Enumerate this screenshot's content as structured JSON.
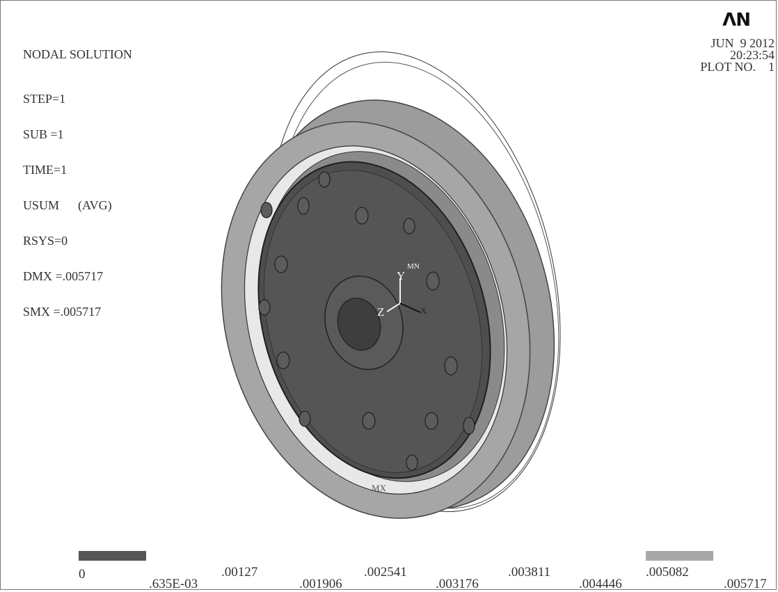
{
  "plot": {
    "title": "NODAL SOLUTION",
    "lines": [
      "STEP=1",
      "SUB =1",
      "TIME=1",
      "USUM      (AVG)",
      "RSYS=0",
      "DMX =.005717",
      "SMX =.005717"
    ],
    "logo": "ΛN",
    "date": "JUN  9 2012",
    "time": "20:23:54",
    "plot_no": "PLOT NO.    1"
  },
  "model": {
    "triad": {
      "y": "Y",
      "z": "Z",
      "x": "X",
      "mn": "MN"
    },
    "mx_label": "MX"
  },
  "legend": {
    "labels": [
      ".635E-03",
      ".00127",
      ".001906",
      ".002541",
      ".003176",
      ".003811",
      ".004446",
      ".005082",
      ".005717",
      "0"
    ],
    "min_color": "#555555",
    "max_color": "#a8a8a8"
  }
}
